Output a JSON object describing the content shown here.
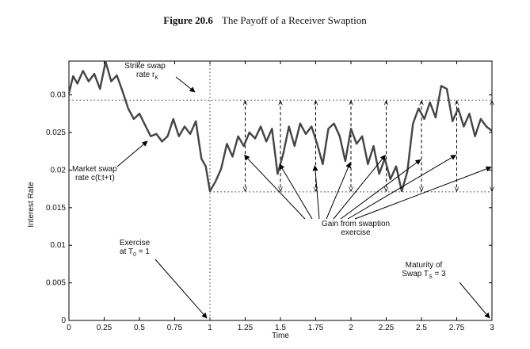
{
  "figure": {
    "number": "Figure 20.6",
    "caption": "The Payoff of a Receiver Swaption"
  },
  "chart_data": {
    "type": "line",
    "xlabel": "Time",
    "ylabel": "Interest Rate",
    "xlim": [
      0,
      3
    ],
    "ylim": [
      0,
      0.0345
    ],
    "xticks": [
      "0",
      "0.25",
      "0.5",
      "0.75",
      "1",
      "1.25",
      "1.5",
      "1.75",
      "2",
      "2.25",
      "2.5",
      "2.75",
      "3"
    ],
    "yticks": [
      "0",
      "0.005",
      "0.01",
      "0.015",
      "0.02",
      "0.025",
      "0.03"
    ],
    "strike_rate": 0.0293,
    "floor_rate": 0.0171,
    "exercise_time": 1,
    "maturity_time": 3,
    "series": [
      {
        "values_x": [
          0,
          0.03,
          0.06,
          0.1,
          0.14,
          0.18,
          0.22,
          0.26,
          0.3,
          0.34,
          0.38,
          0.42,
          0.46,
          0.5,
          0.54,
          0.58,
          0.62,
          0.66,
          0.7,
          0.74,
          0.78,
          0.82,
          0.86,
          0.9,
          0.94,
          0.97,
          1.0,
          1.04,
          1.08,
          1.12,
          1.16,
          1.2,
          1.24,
          1.28,
          1.32,
          1.36,
          1.4,
          1.44,
          1.48,
          1.52,
          1.56,
          1.6,
          1.64,
          1.68,
          1.72,
          1.76,
          1.8,
          1.84,
          1.88,
          1.92,
          1.96,
          2.0,
          2.04,
          2.08,
          2.12,
          2.16,
          2.2,
          2.24,
          2.28,
          2.32,
          2.36,
          2.4,
          2.44,
          2.48,
          2.52,
          2.56,
          2.6,
          2.64,
          2.68,
          2.72,
          2.76,
          2.8,
          2.84,
          2.88,
          2.92,
          2.96,
          3.0
        ],
        "values_y": [
          0.0302,
          0.0325,
          0.0315,
          0.0332,
          0.0318,
          0.0328,
          0.0308,
          0.0344,
          0.0318,
          0.0326,
          0.0305,
          0.0282,
          0.0268,
          0.0275,
          0.026,
          0.0245,
          0.0248,
          0.0238,
          0.0245,
          0.0268,
          0.0245,
          0.0258,
          0.0248,
          0.0265,
          0.0215,
          0.0205,
          0.0172,
          0.0185,
          0.0202,
          0.0235,
          0.0218,
          0.0245,
          0.0232,
          0.025,
          0.0242,
          0.0258,
          0.0238,
          0.0255,
          0.0195,
          0.0222,
          0.0258,
          0.0232,
          0.0262,
          0.0248,
          0.0258,
          0.0235,
          0.0208,
          0.0255,
          0.0262,
          0.0245,
          0.0212,
          0.0255,
          0.0235,
          0.0245,
          0.0208,
          0.0232,
          0.0195,
          0.0215,
          0.0188,
          0.0205,
          0.0172,
          0.0198,
          0.0262,
          0.0282,
          0.0268,
          0.029,
          0.027,
          0.0312,
          0.0308,
          0.0265,
          0.0282,
          0.0258,
          0.0275,
          0.0245,
          0.0268,
          0.0258,
          0.0252
        ]
      }
    ],
    "gain_arrows_x": [
      1.25,
      1.5,
      1.75,
      2.0,
      2.25,
      2.5,
      2.75,
      3.0
    ],
    "annotations": {
      "strike": [
        "Strike swap",
        "rate r",
        "K"
      ],
      "market": [
        "Market swap",
        "rate c(t;t+τ)"
      ],
      "gain": [
        "Gain from swaption",
        "exercise"
      ],
      "exercise": [
        "Exercise",
        "at T",
        "0",
        " = 1"
      ],
      "maturity": [
        "Maturity of",
        "Swap T",
        "S",
        " = 3"
      ]
    }
  }
}
